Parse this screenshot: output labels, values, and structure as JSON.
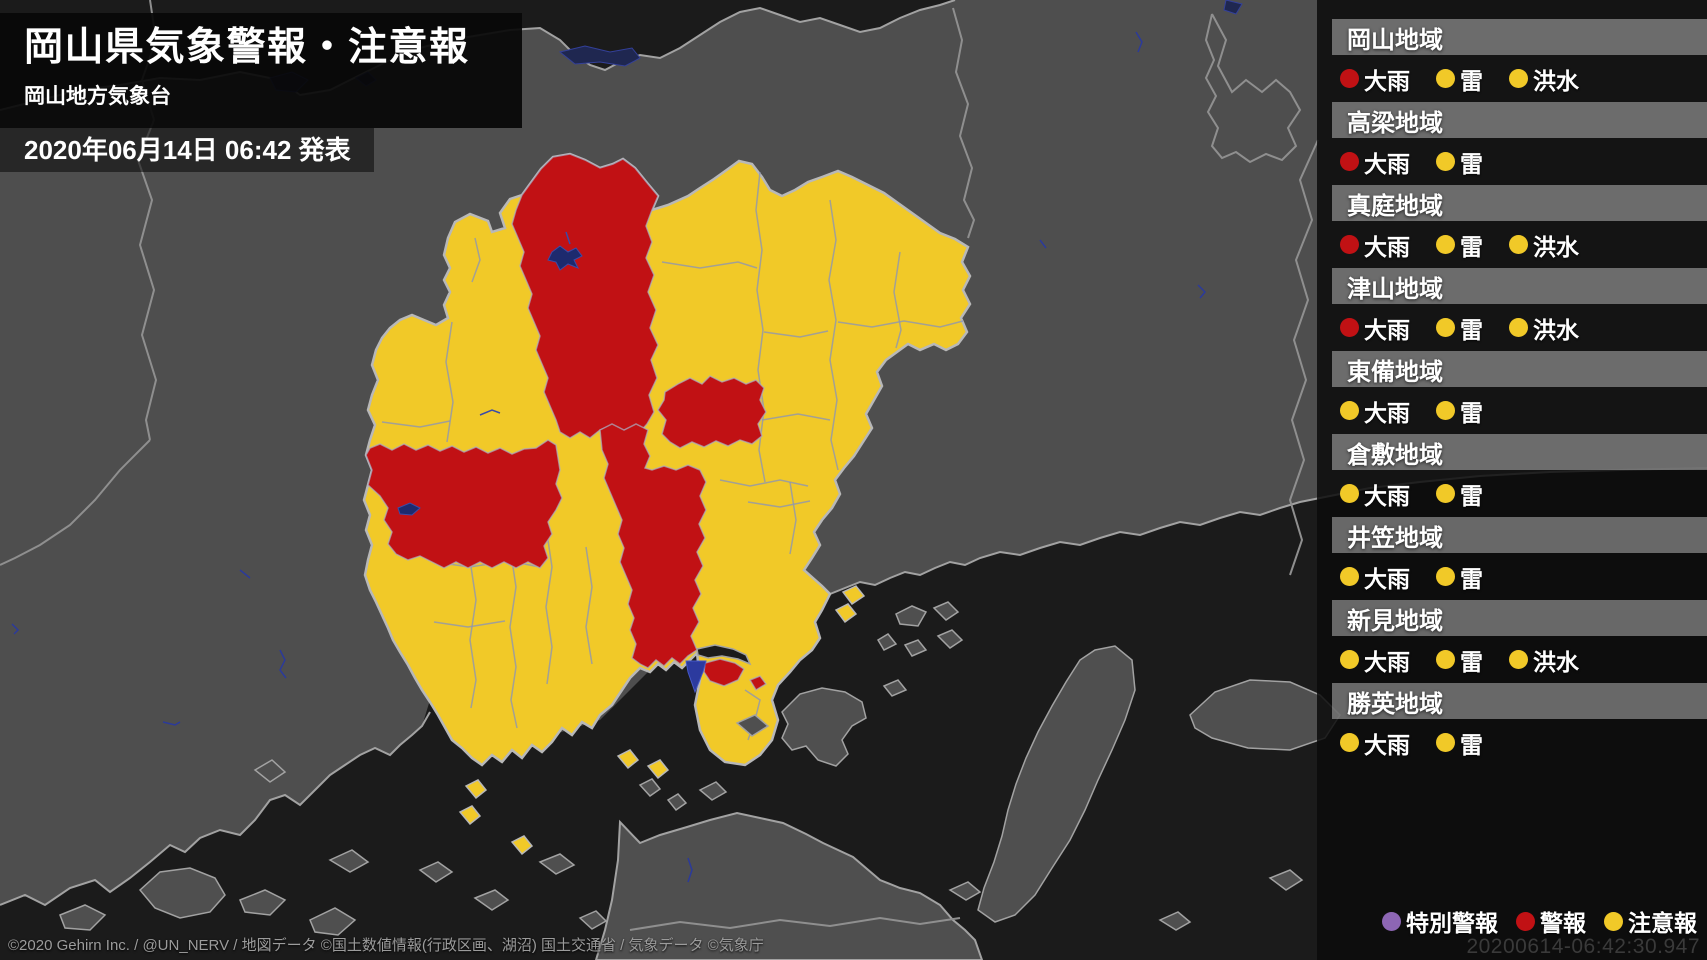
{
  "header": {
    "title": "岡山県気象警報・注意報",
    "agency": "岡山地方気象台",
    "issued": "2020年06月14日 06:42 発表"
  },
  "alerts": {
    "regions": [
      {
        "name": "岡山地域",
        "items": [
          {
            "label": "大雨",
            "level": "warning"
          },
          {
            "label": "雷",
            "level": "advisory"
          },
          {
            "label": "洪水",
            "level": "advisory"
          }
        ]
      },
      {
        "name": "高梁地域",
        "items": [
          {
            "label": "大雨",
            "level": "warning"
          },
          {
            "label": "雷",
            "level": "advisory"
          }
        ]
      },
      {
        "name": "真庭地域",
        "items": [
          {
            "label": "大雨",
            "level": "warning"
          },
          {
            "label": "雷",
            "level": "advisory"
          },
          {
            "label": "洪水",
            "level": "advisory"
          }
        ]
      },
      {
        "name": "津山地域",
        "items": [
          {
            "label": "大雨",
            "level": "warning"
          },
          {
            "label": "雷",
            "level": "advisory"
          },
          {
            "label": "洪水",
            "level": "advisory"
          }
        ]
      },
      {
        "name": "東備地域",
        "items": [
          {
            "label": "大雨",
            "level": "advisory"
          },
          {
            "label": "雷",
            "level": "advisory"
          }
        ]
      },
      {
        "name": "倉敷地域",
        "items": [
          {
            "label": "大雨",
            "level": "advisory"
          },
          {
            "label": "雷",
            "level": "advisory"
          }
        ]
      },
      {
        "name": "井笠地域",
        "items": [
          {
            "label": "大雨",
            "level": "advisory"
          },
          {
            "label": "雷",
            "level": "advisory"
          }
        ]
      },
      {
        "name": "新見地域",
        "items": [
          {
            "label": "大雨",
            "level": "advisory"
          },
          {
            "label": "雷",
            "level": "advisory"
          },
          {
            "label": "洪水",
            "level": "advisory"
          }
        ]
      },
      {
        "name": "勝英地域",
        "items": [
          {
            "label": "大雨",
            "level": "advisory"
          },
          {
            "label": "雷",
            "level": "advisory"
          }
        ]
      }
    ]
  },
  "legend": {
    "items": [
      {
        "label": "特別警報",
        "level": "special"
      },
      {
        "label": "警報",
        "level": "warning"
      },
      {
        "label": "注意報",
        "level": "advisory"
      }
    ]
  },
  "colors": {
    "special": "#8d66b4",
    "warning": "#c11114",
    "advisory": "#f1c928"
  },
  "watermark": "20200614-06:42:30.947",
  "attribution": "©2020 Gehirn Inc. / @UN_NERV / 地図データ ©国土数値情報(行政区画、湖沼) 国土交通省 / 気象データ ©気象庁"
}
